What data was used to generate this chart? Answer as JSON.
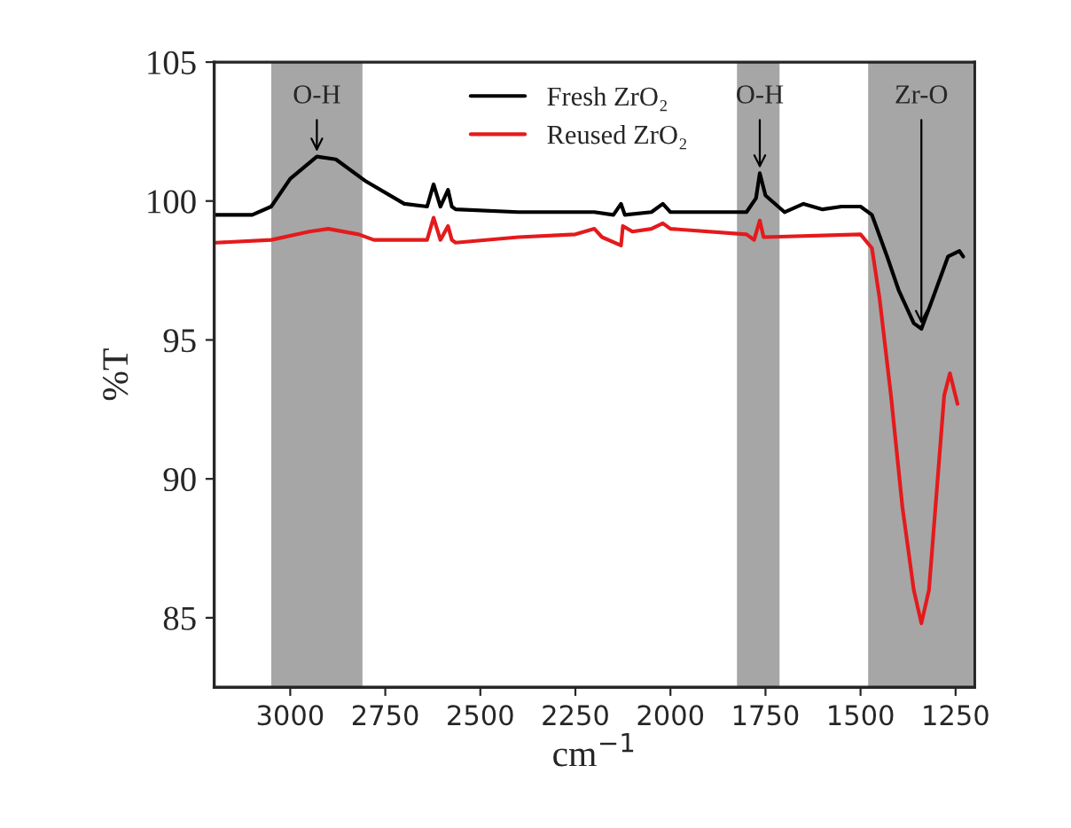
{
  "chart_data": {
    "type": "line",
    "xlabel": "cm$^{−1}$",
    "ylabel": "%T",
    "xlim": [
      3200,
      1200
    ],
    "xticks": [
      3000,
      2750,
      2500,
      2250,
      2000,
      1750,
      1500,
      1250
    ],
    "ylim": [
      82.5,
      105
    ],
    "yticks": [
      85,
      90,
      95,
      100,
      105
    ],
    "grid": false,
    "legend": "top",
    "marker": "none",
    "line_style": "solid",
    "bands": [
      {
        "axis": "x",
        "from": 3050,
        "to": 2810,
        "color": "#a6a6a6"
      },
      {
        "axis": "x",
        "from": 1825,
        "to": 1713,
        "color": "#a6a6a6"
      },
      {
        "axis": "x",
        "from": 1480,
        "to": 1205,
        "color": "#a6a6a6"
      }
    ],
    "annotations": [
      {
        "text": "O-H",
        "x": 2930,
        "y": 101.6
      },
      {
        "text": "O-H",
        "x": 1765,
        "y": 101.0
      },
      {
        "text": "Zr-O",
        "x": 1340,
        "y": 95.4
      }
    ],
    "series": [
      {
        "name": "Fresh ZrO₂",
        "color": "#000000",
        "x": [
          3196,
          3100,
          3050,
          3000,
          2930,
          2880,
          2800,
          2700,
          2640,
          2623,
          2605,
          2585,
          2575,
          2565,
          2400,
          2200,
          2150,
          2130,
          2120,
          2050,
          2020,
          2000,
          1800,
          1775,
          1765,
          1750,
          1700,
          1650,
          1600,
          1550,
          1500,
          1470,
          1430,
          1400,
          1360,
          1340,
          1310,
          1270,
          1240,
          1230
        ],
        "values": [
          99.5,
          99.5,
          99.8,
          100.8,
          101.6,
          101.5,
          100.7,
          99.9,
          99.8,
          100.6,
          99.8,
          100.4,
          99.8,
          99.7,
          99.6,
          99.6,
          99.5,
          99.9,
          99.5,
          99.6,
          99.9,
          99.6,
          99.6,
          100.1,
          101.0,
          100.2,
          99.6,
          99.9,
          99.7,
          99.8,
          99.8,
          99.5,
          98.0,
          96.8,
          95.6,
          95.4,
          96.5,
          98.0,
          98.2,
          98.0
        ]
      },
      {
        "name": "Reused ZrO₂",
        "color": "#e41a1c",
        "x": [
          3196,
          3050,
          2950,
          2900,
          2820,
          2780,
          2640,
          2623,
          2605,
          2585,
          2575,
          2565,
          2400,
          2250,
          2200,
          2180,
          2130,
          2125,
          2100,
          2050,
          2020,
          2000,
          1800,
          1780,
          1765,
          1755,
          1500,
          1470,
          1450,
          1420,
          1390,
          1360,
          1340,
          1320,
          1300,
          1280,
          1265,
          1245
        ],
        "values": [
          98.5,
          98.6,
          98.9,
          99.0,
          98.8,
          98.6,
          98.6,
          99.4,
          98.6,
          99.1,
          98.6,
          98.5,
          98.7,
          98.8,
          99.0,
          98.7,
          98.4,
          99.1,
          98.9,
          99.0,
          99.2,
          99.0,
          98.8,
          98.6,
          99.3,
          98.7,
          98.8,
          98.3,
          96.5,
          93.0,
          89.0,
          86.0,
          84.8,
          86.0,
          89.5,
          93.0,
          93.8,
          92.7
        ]
      }
    ]
  }
}
